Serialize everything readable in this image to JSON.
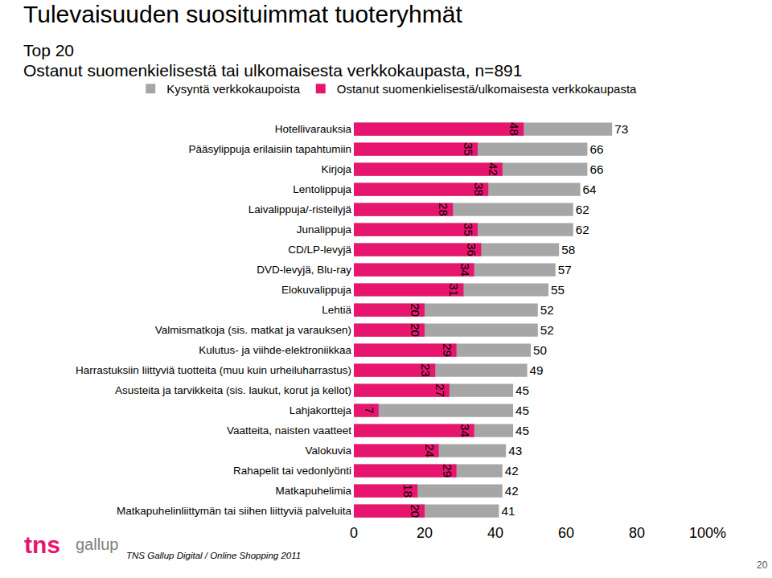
{
  "chart_data": {
    "type": "bar",
    "title": "Tulevaisuuden suosituimmat tuoteryhmät",
    "subtitle": [
      "Top 20",
      "Ostanut suomenkielisestä tai ulkomaisesta verkkokaupasta, n=891"
    ],
    "annotations": [
      "TNS Gallup Digital / Online Shopping 2011",
      "20",
      "tns",
      "gallup"
    ],
    "orientation": "horizontal",
    "stacked": false,
    "data_labels": true,
    "grid": false,
    "legend": "top",
    "categories": [
      "Hotellivarauksia",
      "Pääsylippuja erilaisiin tapahtumiin",
      "Kirjoja",
      "Lentolippuja",
      "Laivalippuja/-risteilyjä",
      "Junalippuja",
      "CD/LP-levyjä",
      "DVD-levyjä, Blu-ray",
      "Elokuvalippuja",
      "Lehtiä",
      "Valmismatkoja (sis. matkat ja varauksen)",
      "Kulutus- ja viihde-elektroniikkaa",
      "Harrastuksiin liittyviä tuotteita (muu kuin urheiluharrastus)",
      "Asusteita ja tarvikkeita (sis. laukut, korut ja kellot)",
      "Lahjakortteja",
      "Vaatteita, naisten vaatteet",
      "Valokuvia",
      "Rahapelit tai vedonlyönti",
      "Matkapuhelimia",
      "Matkapuhelinliittymän tai siihen liittyviä palveluita"
    ],
    "series": [
      {
        "name": "Kysyntä verkkokaupoista",
        "color": "#a6a6a6",
        "values": [
          73,
          66,
          66,
          64,
          62,
          62,
          58,
          57,
          55,
          52,
          52,
          50,
          49,
          45,
          45,
          45,
          43,
          42,
          42,
          41
        ]
      },
      {
        "name": "Ostanut suomenkielisestä/ulkomaisesta verkkokaupasta",
        "color": "#e8156e",
        "values": [
          48,
          35,
          42,
          38,
          28,
          35,
          36,
          34,
          31,
          20,
          20,
          29,
          23,
          27,
          7,
          34,
          24,
          29,
          18,
          20
        ]
      }
    ],
    "xlim": [
      0,
      100
    ],
    "xticks": [
      0,
      20,
      40,
      60,
      80,
      {
        "value": 100,
        "label": "100%"
      }
    ]
  }
}
